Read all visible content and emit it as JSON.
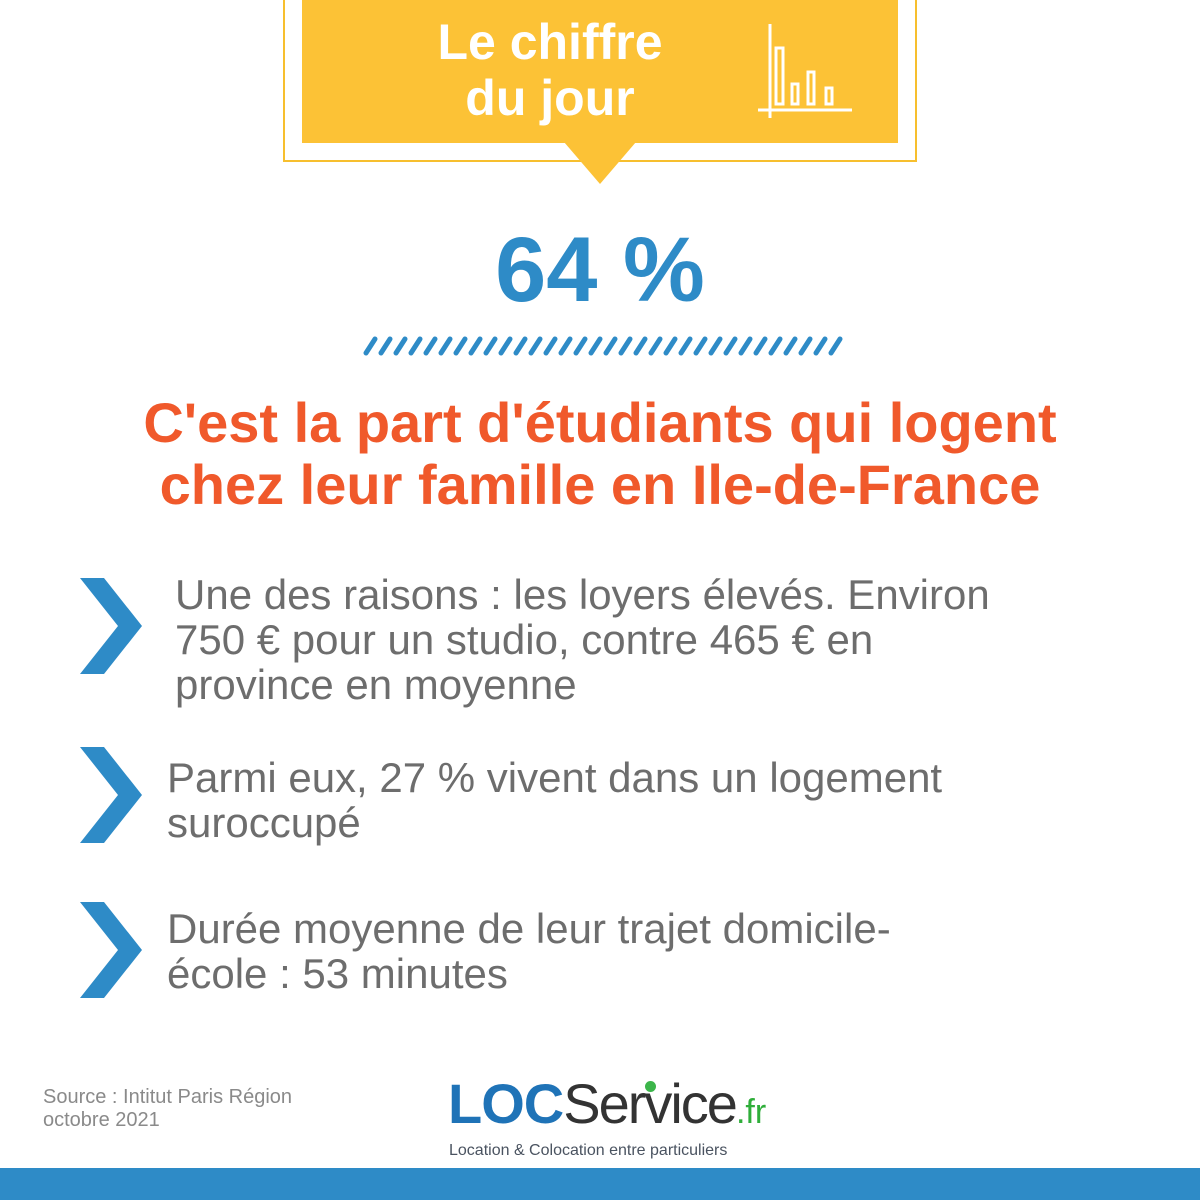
{
  "banner": {
    "line1": "Le chiffre",
    "line2": "du jour",
    "icon": "bar-chart-icon",
    "color": "#fcc236"
  },
  "figure": {
    "value": "64 %",
    "color": "#2e8bc7"
  },
  "headline": {
    "line1": "C'est la part d'étudiants qui logent",
    "line2": "chez leur famille en Ile-de-France",
    "color": "#f0592b"
  },
  "bullets": [
    {
      "icon": "chevron-right-icon",
      "lines": [
        "Une des raisons : les loyers élevés. Environ",
        "750 € pour un studio, contre 465 € en",
        "province en moyenne"
      ]
    },
    {
      "icon": "chevron-right-icon",
      "lines": [
        "Parmi eux, 27 % vivent dans un logement",
        "suroccupé"
      ]
    },
    {
      "icon": "chevron-right-icon",
      "lines": [
        "Durée moyenne de leur trajet domicile-",
        "école : 53 minutes"
      ]
    }
  ],
  "source": {
    "line1": "Source : Intitut Paris Région",
    "line2": "octobre 2021"
  },
  "logo": {
    "part1": "LOC",
    "part2": "Service",
    "part3": ".fr",
    "tagline": "Location & Colocation entre particuliers"
  },
  "accent_color": "#2e8bc7"
}
